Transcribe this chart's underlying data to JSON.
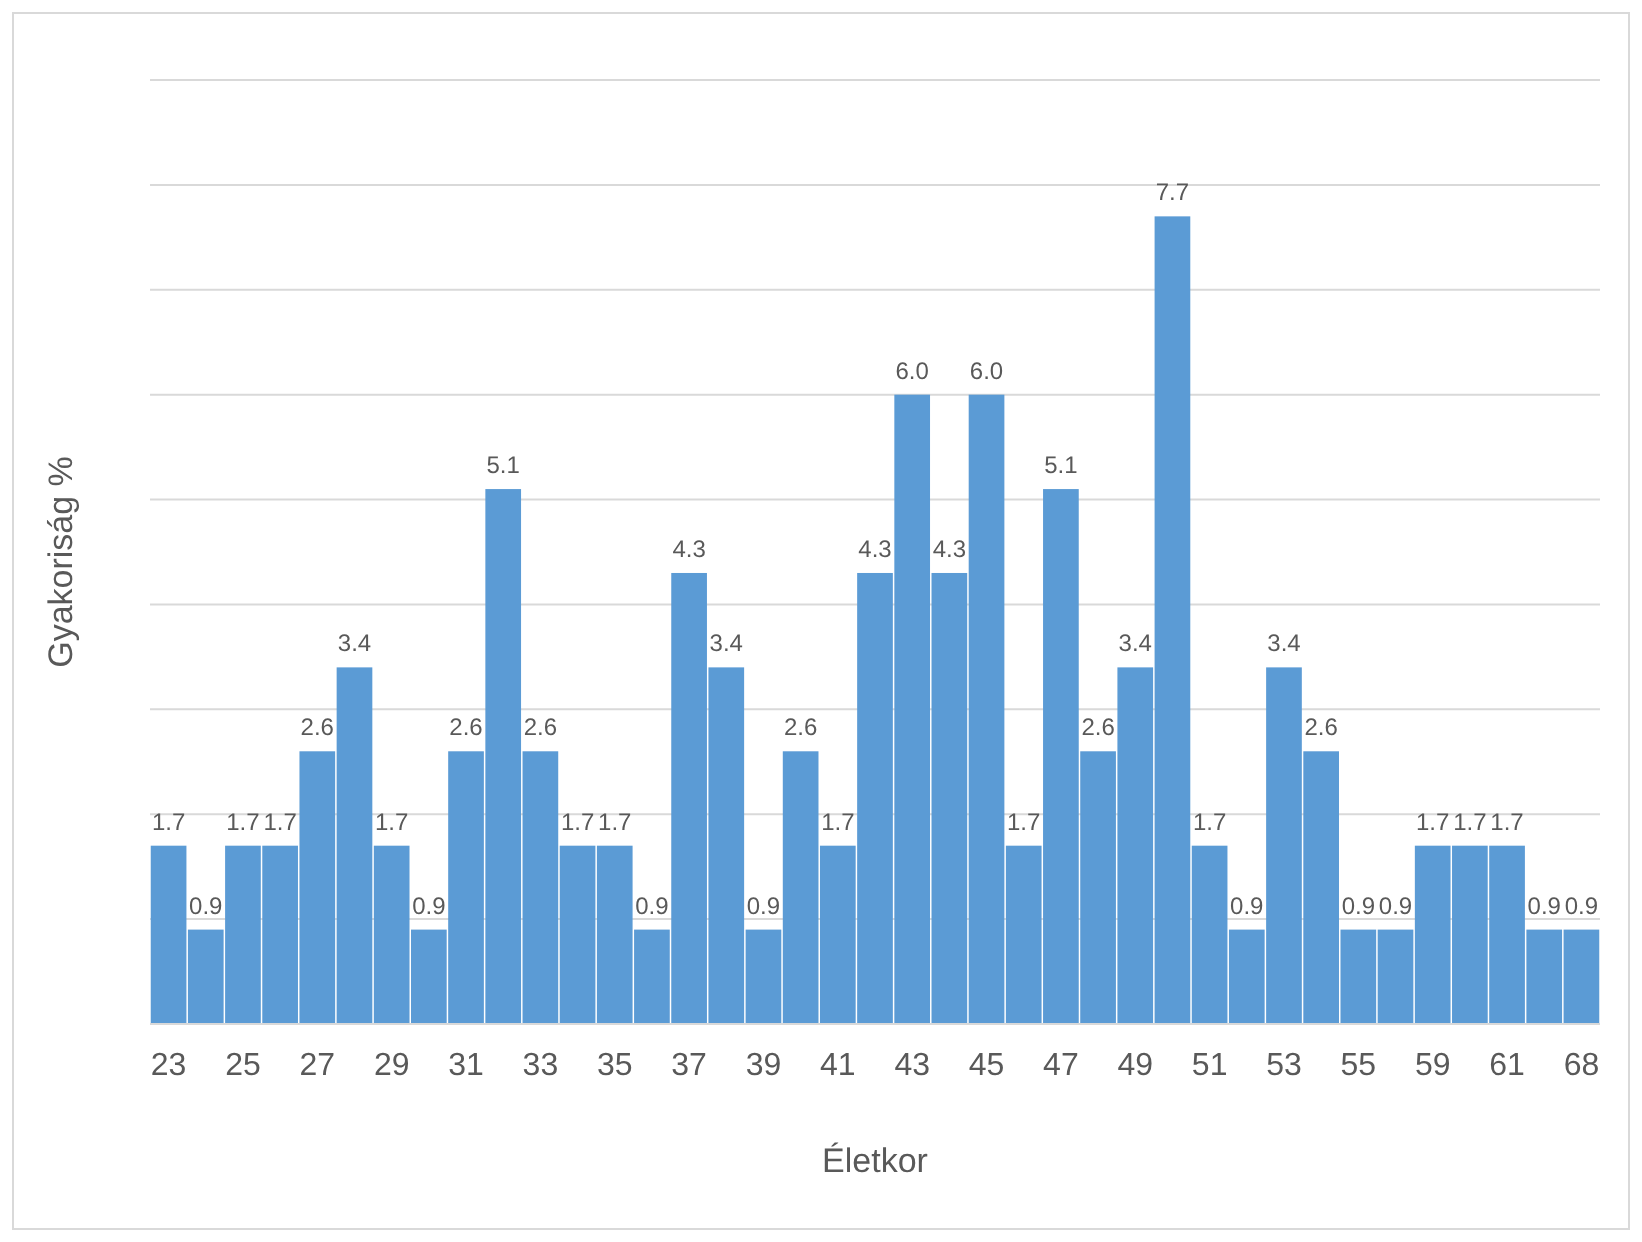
{
  "chart_data": {
    "type": "bar",
    "xlabel": "Életkor",
    "ylabel": "Gyakoriság %",
    "categories": [
      "23",
      null,
      "25",
      null,
      "27",
      null,
      "29",
      null,
      "31",
      null,
      "33",
      null,
      "35",
      null,
      "37",
      null,
      "39",
      null,
      "41",
      null,
      "43",
      null,
      "45",
      null,
      "47",
      null,
      "49",
      null,
      "51",
      null,
      "53",
      null,
      "55",
      null,
      "59",
      null,
      "61",
      null,
      "68"
    ],
    "values": [
      1.7,
      0.9,
      1.7,
      1.7,
      2.6,
      3.4,
      1.7,
      0.9,
      2.6,
      5.1,
      2.6,
      1.7,
      1.7,
      0.9,
      4.3,
      3.4,
      0.9,
      2.6,
      1.7,
      4.3,
      6.0,
      4.3,
      6.0,
      1.7,
      5.1,
      2.6,
      3.4,
      7.7,
      1.7,
      0.9,
      3.4,
      2.6,
      0.9,
      0.9,
      1.7,
      1.7,
      1.7,
      0.9,
      0.9
    ],
    "value_labels": [
      "1.7",
      "0.9",
      "1.7",
      "1.7",
      "2.6",
      "3.4",
      "1.7",
      "0.9",
      "2.6",
      "5.1",
      "2.6",
      "1.7",
      "1.7",
      "0.9",
      "4.3",
      "3.4",
      "0.9",
      "2.6",
      "1.7",
      "4.3",
      "6.0",
      "4.3",
      "6.0",
      "1.7",
      "5.1",
      "2.6",
      "3.4",
      "7.7",
      "1.7",
      "0.9",
      "3.4",
      "2.6",
      "0.9",
      "0.9",
      "1.7",
      "1.7",
      "1.7",
      "0.9",
      "0.9"
    ],
    "color": "#5b9bd5",
    "ylim": [
      0,
      9
    ],
    "yticks": [
      {
        "value": 0,
        "label": null
      },
      {
        "value": 1,
        "label": null
      },
      {
        "value": 2,
        "label": null
      },
      {
        "value": 3,
        "label": null
      },
      {
        "value": 4,
        "label": null
      },
      {
        "value": 5,
        "label": null
      },
      {
        "value": 6,
        "label": null
      },
      {
        "value": 7,
        "label": null
      },
      {
        "value": 8,
        "label": null
      },
      {
        "value": 9,
        "label": null
      }
    ],
    "grid": "y",
    "tick_labels": "x"
  }
}
